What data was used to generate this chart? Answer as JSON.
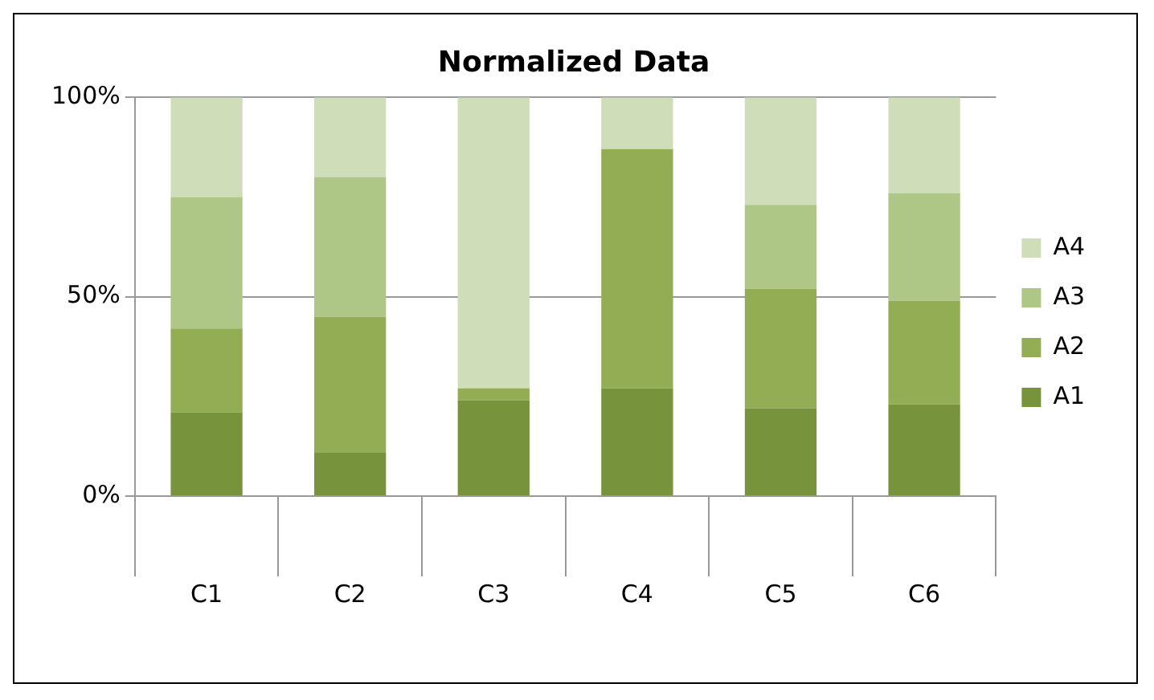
{
  "chart_data": {
    "type": "bar",
    "title": "Normalized Data",
    "stacked": true,
    "categories": [
      "C1",
      "C2",
      "C3",
      "C4",
      "C5",
      "C6"
    ],
    "series": [
      {
        "name": "A1",
        "color": "#77933c",
        "values": [
          21,
          11,
          24,
          27,
          22,
          23
        ]
      },
      {
        "name": "A2",
        "color": "#93ad54",
        "values": [
          21,
          34,
          3,
          60,
          30,
          26
        ]
      },
      {
        "name": "A3",
        "color": "#aec686",
        "values": [
          33,
          35,
          0,
          0,
          21,
          27
        ]
      },
      {
        "name": "A4",
        "color": "#d0ddb9",
        "values": [
          25,
          20,
          73,
          13,
          27,
          24
        ]
      }
    ],
    "ylim": [
      0,
      100
    ],
    "yticks": [
      {
        "value": 0,
        "label": "0%"
      },
      {
        "value": 50,
        "label": "50%"
      },
      {
        "value": 100,
        "label": "100%"
      }
    ],
    "grid": "y",
    "legend": "right"
  }
}
